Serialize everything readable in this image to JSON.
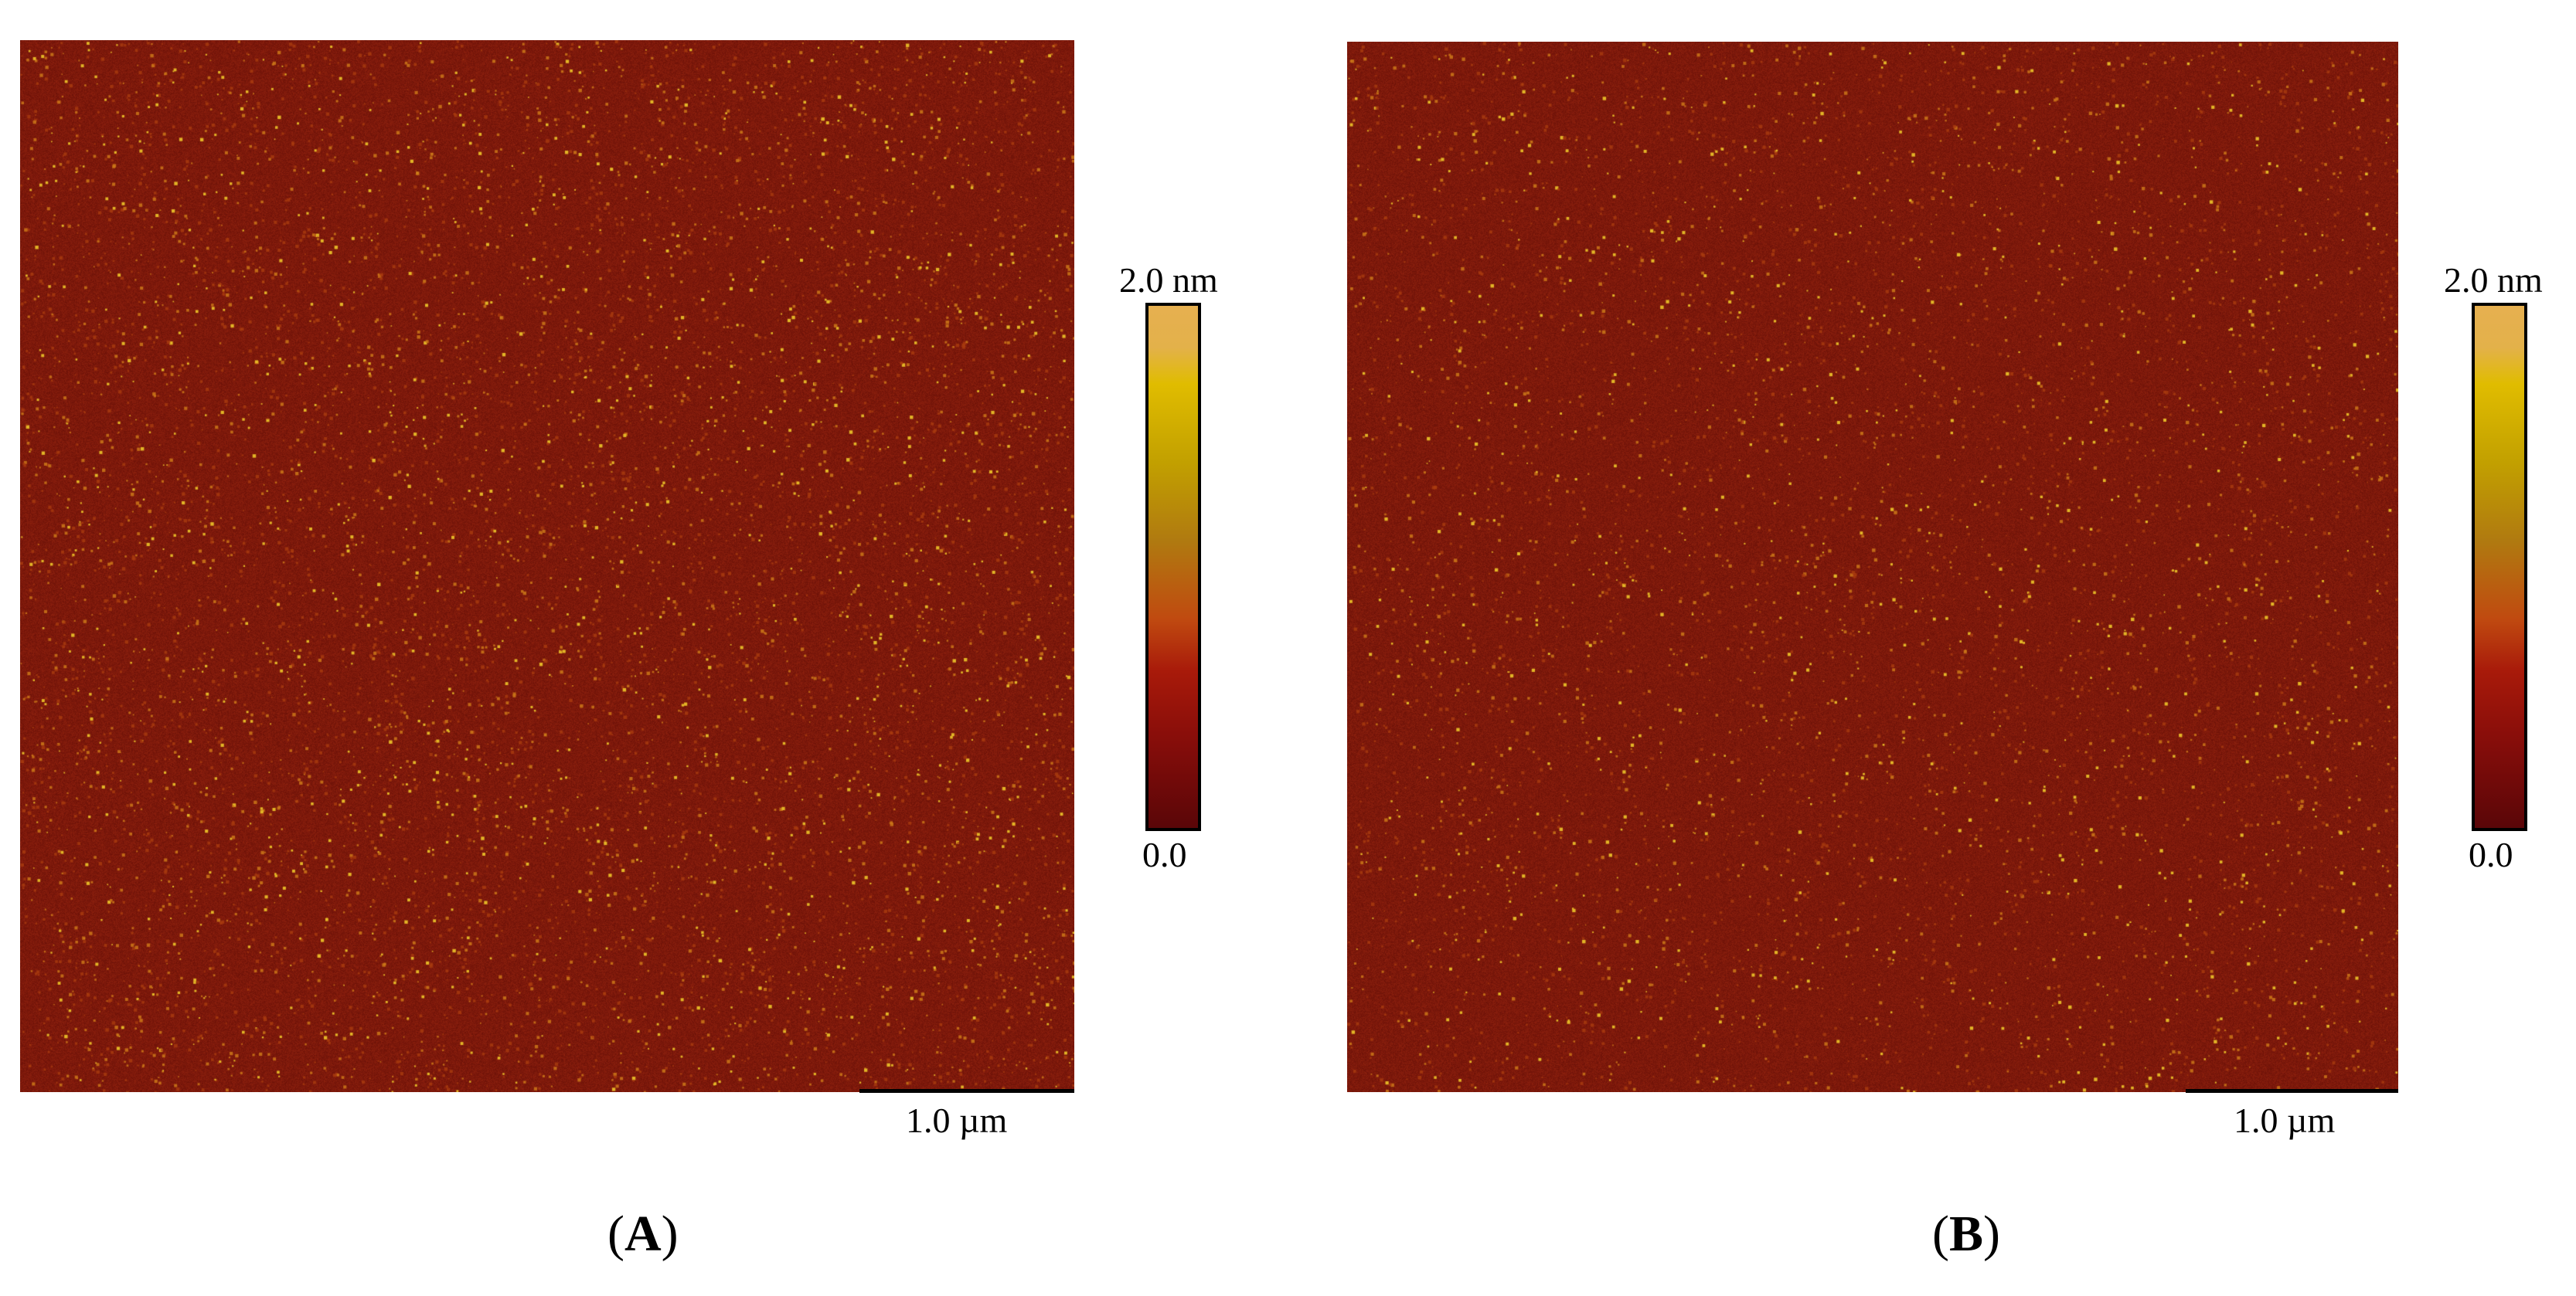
{
  "panels": [
    {
      "label": "A",
      "scale_bar": "1.0 µm",
      "colorbar": {
        "max": "2.0 nm",
        "min": "0.0"
      },
      "base_color": "#7a1a0a",
      "speckle_color": "#e0b020"
    },
    {
      "label": "B",
      "scale_bar": "1.0 µm",
      "colorbar": {
        "max": "2.0 nm",
        "min": "0.0"
      },
      "base_color": "#7a1a0a",
      "speckle_color": "#e0b020"
    }
  ],
  "punctuation": {
    "open": "(",
    "close": ")"
  }
}
